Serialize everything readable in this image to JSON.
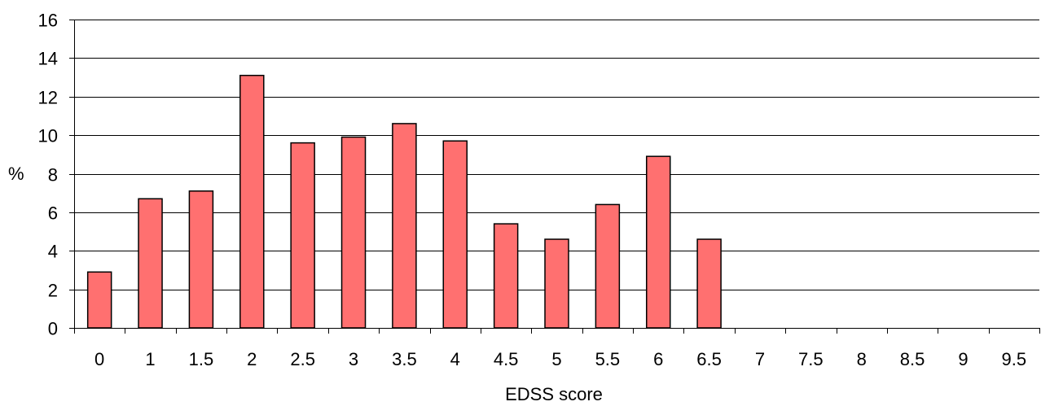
{
  "chart_data": {
    "type": "bar",
    "categories": [
      "0",
      "1",
      "1.5",
      "2",
      "2.5",
      "3",
      "3.5",
      "4",
      "4.5",
      "5",
      "5.5",
      "6",
      "6.5",
      "7",
      "7.5",
      "8",
      "8.5",
      "9",
      "9.5"
    ],
    "values": [
      2.9,
      6.7,
      7.1,
      13.1,
      9.6,
      9.9,
      10.6,
      9.7,
      5.4,
      4.6,
      6.4,
      8.9,
      4.6,
      0,
      0,
      0,
      0,
      0,
      0
    ],
    "yticks": [
      "0",
      "2",
      "4",
      "6",
      "8",
      "10",
      "12",
      "14",
      "16"
    ],
    "ylim": [
      0,
      16
    ],
    "xlabel": "EDSS score",
    "ylabel": "%",
    "grid": "horizontal",
    "bar_color": "#FF7070",
    "bar_edge_color": "#000000"
  }
}
